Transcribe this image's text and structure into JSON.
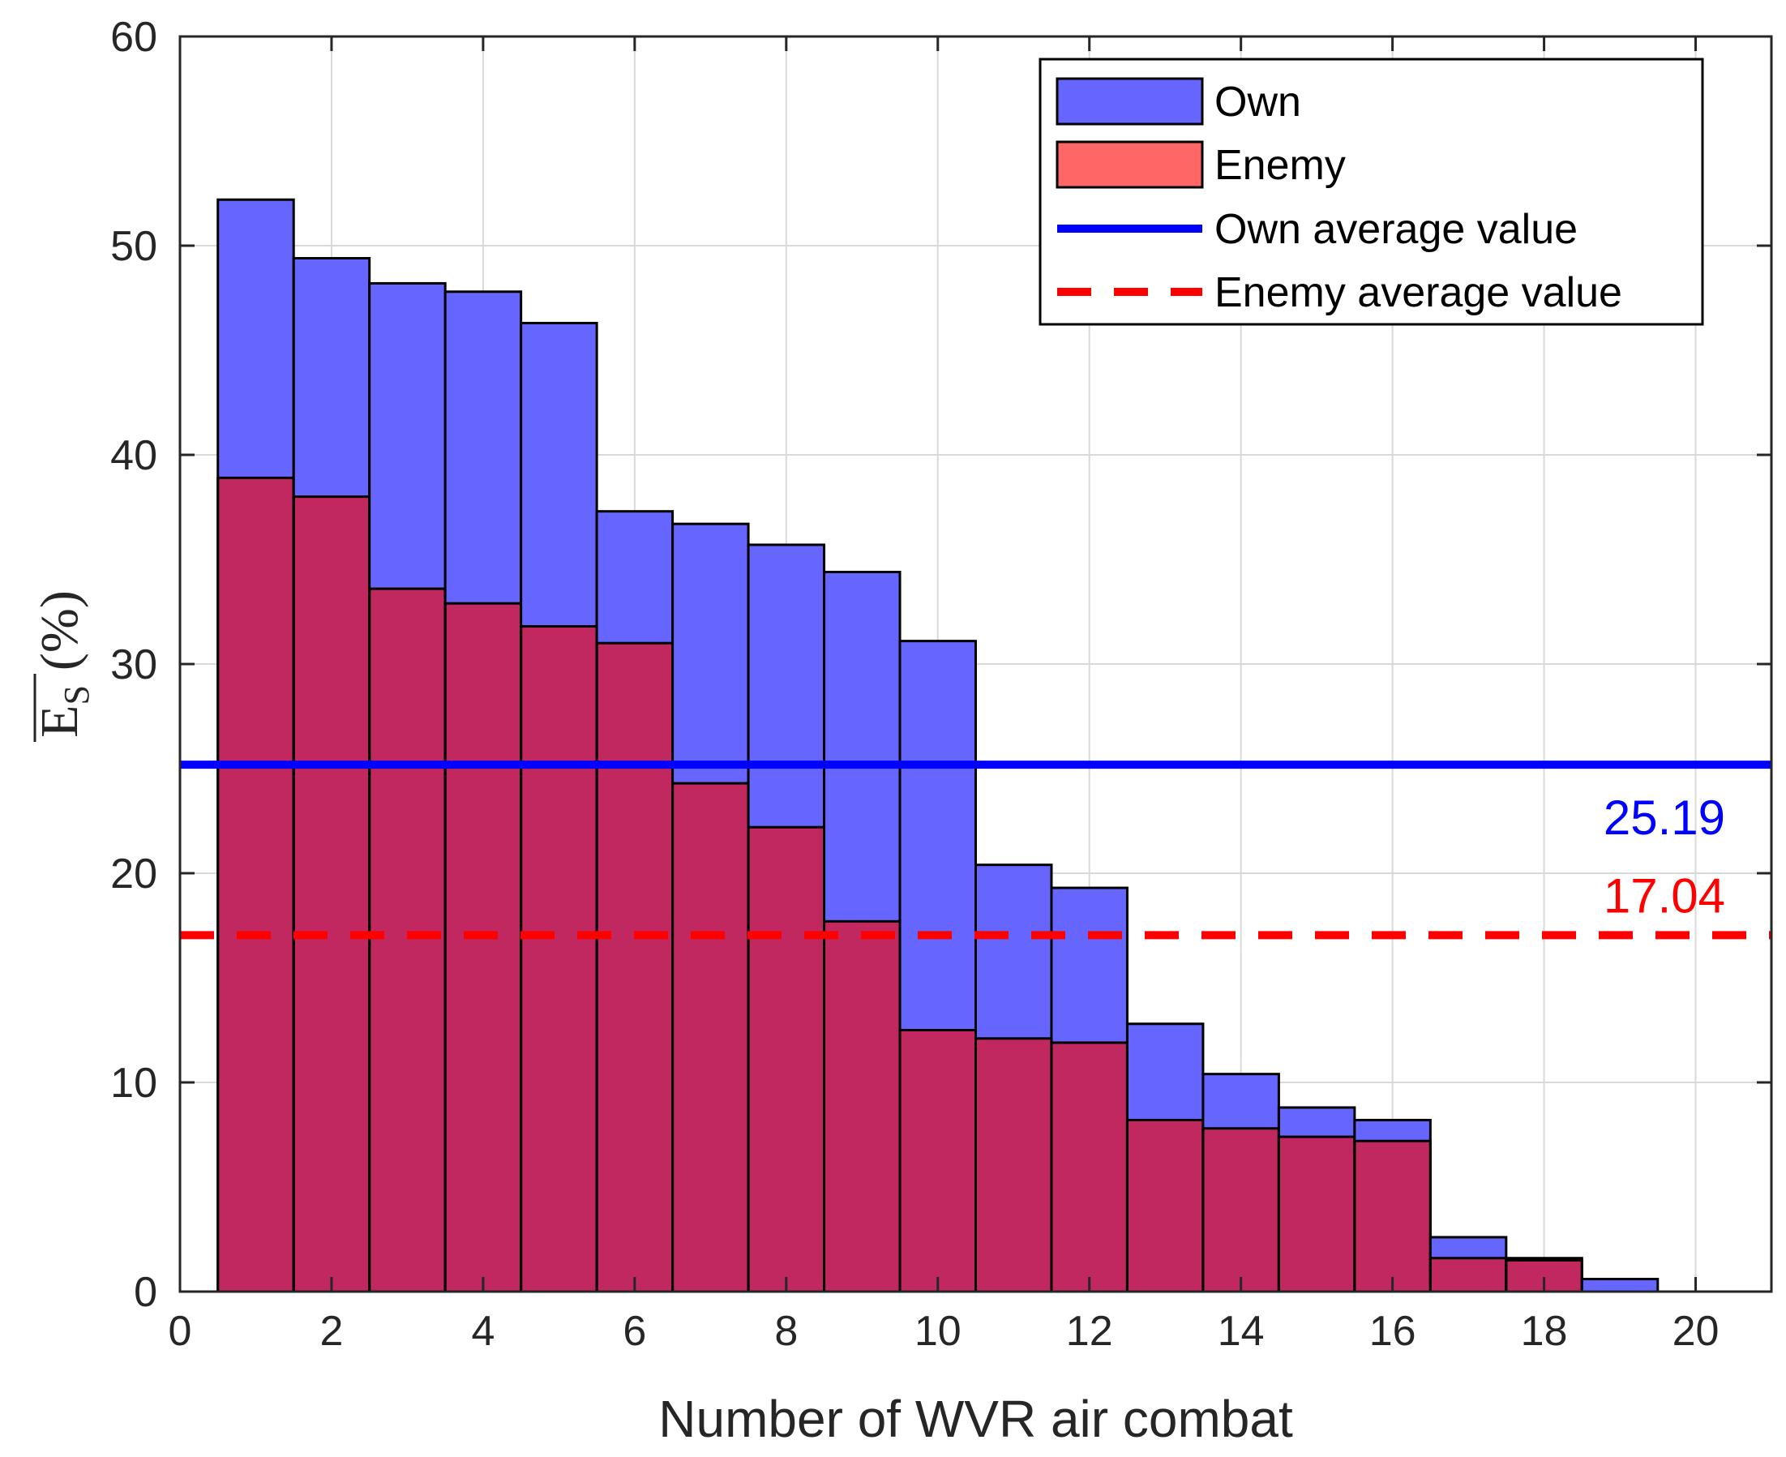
{
  "chart_data": {
    "type": "bar",
    "title": "",
    "xlabel": "Number of WVR air combat",
    "ylabel": {
      "symbol": "E",
      "subscript": "S",
      "unit": "(%)"
    },
    "xlim": [
      0,
      21
    ],
    "ylim": [
      0,
      60
    ],
    "x_ticks": [
      0,
      2,
      4,
      6,
      8,
      10,
      12,
      14,
      16,
      18,
      20
    ],
    "y_ticks": [
      0,
      10,
      20,
      30,
      40,
      50,
      60
    ],
    "grid": true,
    "legend_position": "top-right",
    "categories": [
      1,
      2,
      3,
      4,
      5,
      6,
      7,
      8,
      9,
      10,
      11,
      12,
      13,
      14,
      15,
      16,
      17,
      18,
      19,
      20
    ],
    "series": [
      {
        "name": "Own",
        "color": "#6666ff",
        "values": [
          52.2,
          49.4,
          48.2,
          47.8,
          46.3,
          37.3,
          36.7,
          35.7,
          34.4,
          31.1,
          20.4,
          19.3,
          12.8,
          10.4,
          8.8,
          8.2,
          2.6,
          1.6,
          0.6,
          0
        ]
      },
      {
        "name": "Enemy",
        "color": "#ff6666",
        "values": [
          38.9,
          38.0,
          33.6,
          32.9,
          31.8,
          31.0,
          24.3,
          22.2,
          17.7,
          12.5,
          12.1,
          11.9,
          8.2,
          7.8,
          7.4,
          7.2,
          1.6,
          1.5,
          0,
          0
        ]
      }
    ],
    "overlap_color": "#c1285f",
    "reference_lines": [
      {
        "name": "Own average value",
        "value": 25.19,
        "label": "25.19",
        "color": "#0000ff",
        "style": "solid"
      },
      {
        "name": "Enemy average value",
        "value": 17.04,
        "label": "17.04",
        "color": "#ff0000",
        "style": "dashed"
      }
    ],
    "legend": [
      "Own",
      "Enemy",
      "Own average value",
      "Enemy average value"
    ]
  }
}
